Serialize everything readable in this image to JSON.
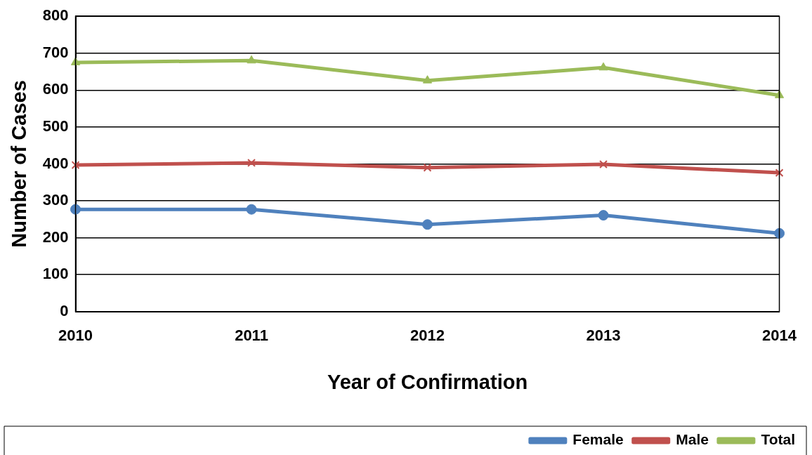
{
  "chart_data": {
    "type": "line",
    "xlabel": "Year of Confirmation",
    "ylabel": "Number of Cases",
    "categories": [
      "2010",
      "2011",
      "2012",
      "2013",
      "2014"
    ],
    "series": [
      {
        "name": "Female",
        "color": "#4f81bd",
        "marker": "circle",
        "values": [
          277,
          277,
          236,
          261,
          212
        ]
      },
      {
        "name": "Male",
        "color": "#c0504d",
        "marker": "cross",
        "values": [
          397,
          403,
          390,
          399,
          376
        ]
      },
      {
        "name": "Total",
        "color": "#9bbb59",
        "marker": "triangle",
        "values": [
          675,
          680,
          626,
          661,
          586
        ]
      }
    ],
    "ylim": [
      0,
      800
    ],
    "yticks": [
      0,
      100,
      200,
      300,
      400,
      500,
      600,
      700,
      800
    ],
    "grid": "y",
    "legend": "bottom right",
    "line_style": "solid"
  }
}
